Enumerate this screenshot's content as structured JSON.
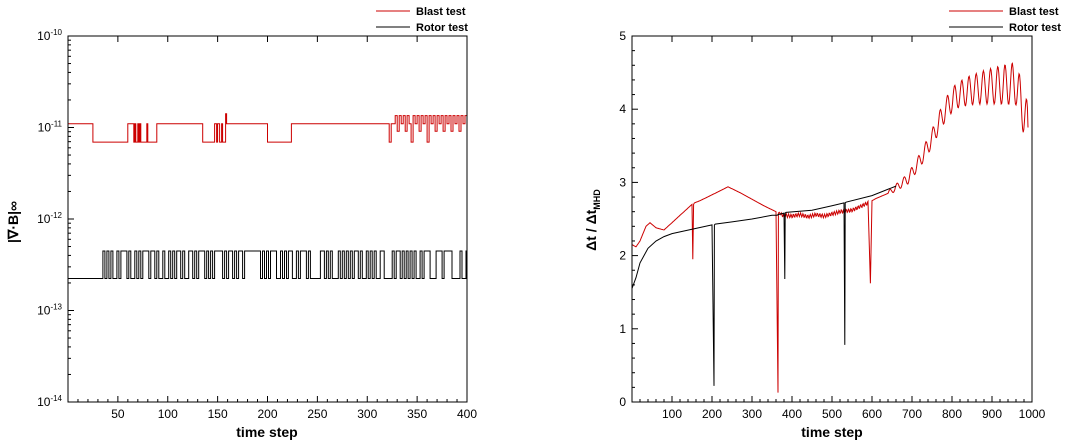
{
  "colors": {
    "blast": "#cc0000",
    "rotor": "#000000",
    "axis": "#000000"
  },
  "chart_data": [
    {
      "type": "line",
      "title": "",
      "xlabel": "time step",
      "ylabel": "|∇·B|∞",
      "yscale": "log",
      "xlim": [
        0,
        400
      ],
      "ylim_exp": [
        -14,
        -10
      ],
      "xticks": [
        50,
        100,
        150,
        200,
        250,
        300,
        350,
        400
      ],
      "yticks": [
        {
          "exp": -14,
          "label": "10",
          "sup": "-14"
        },
        {
          "exp": -13,
          "label": "10",
          "sup": "-13"
        },
        {
          "exp": -12,
          "label": "10",
          "sup": "-12"
        },
        {
          "exp": -11,
          "label": "10",
          "sup": "-11"
        },
        {
          "exp": -10,
          "label": "10",
          "sup": "-10"
        }
      ],
      "legend": {
        "position": "top-right"
      },
      "series": [
        {
          "name": "Blast test",
          "color": "#cc0000",
          "x": [
            0,
            25,
            25,
            60,
            60,
            66,
            66,
            67,
            67,
            68,
            68,
            70,
            70,
            71,
            71,
            72,
            72,
            73,
            73,
            79,
            79,
            80,
            80,
            89,
            89,
            135,
            135,
            147,
            147,
            149,
            149,
            150,
            150,
            152,
            152,
            154,
            154,
            155,
            155,
            158,
            158,
            159,
            159,
            160,
            160,
            200,
            200,
            224,
            224,
            322,
            322,
            324,
            324,
            328,
            328,
            330,
            330,
            332,
            332,
            334,
            334,
            336,
            336,
            338,
            338,
            340,
            340,
            342,
            342,
            344,
            344,
            346,
            346,
            348,
            348,
            350,
            350,
            352,
            352,
            354,
            354,
            356,
            356,
            358,
            358,
            360,
            360,
            362,
            362,
            364,
            364,
            366,
            366,
            368,
            368,
            370,
            370,
            372,
            372,
            374,
            374,
            376,
            376,
            378,
            378,
            380,
            380,
            382,
            382,
            384,
            384,
            386,
            386,
            388,
            388,
            390,
            390,
            392,
            392,
            394,
            394,
            396,
            396,
            398,
            398,
            400
          ],
          "log_y": [
            -10.96,
            -10.96,
            -11.16,
            -11.16,
            -10.96,
            -10.96,
            -11.16,
            -11.16,
            -10.96,
            -10.96,
            -11.16,
            -11.16,
            -10.96,
            -10.96,
            -11.16,
            -11.16,
            -10.96,
            -10.96,
            -11.16,
            -11.16,
            -10.96,
            -10.96,
            -11.16,
            -11.16,
            -10.96,
            -10.96,
            -11.16,
            -11.16,
            -10.96,
            -10.96,
            -11.16,
            -11.16,
            -10.96,
            -10.96,
            -11.16,
            -11.16,
            -10.96,
            -10.96,
            -11.16,
            -11.16,
            -10.85,
            -10.85,
            -10.96,
            -10.96,
            -10.96,
            -10.96,
            -11.16,
            -11.16,
            -10.96,
            -10.96,
            -11.16,
            -11.16,
            -10.96,
            -10.96,
            -10.87,
            -10.87,
            -11.04,
            -11.04,
            -10.87,
            -10.87,
            -10.96,
            -10.96,
            -10.87,
            -10.87,
            -11.04,
            -11.04,
            -10.87,
            -10.87,
            -10.96,
            -10.96,
            -11.16,
            -11.16,
            -10.87,
            -10.87,
            -10.96,
            -10.96,
            -10.87,
            -10.87,
            -11.04,
            -11.04,
            -10.87,
            -10.87,
            -10.96,
            -10.96,
            -10.87,
            -10.87,
            -11.16,
            -11.16,
            -10.87,
            -10.87,
            -10.96,
            -10.96,
            -10.87,
            -10.87,
            -11.04,
            -11.04,
            -10.87,
            -10.87,
            -10.96,
            -10.96,
            -10.87,
            -10.87,
            -11.04,
            -11.04,
            -10.87,
            -10.87,
            -10.96,
            -10.96,
            -10.87,
            -10.87,
            -11.04,
            -11.04,
            -10.87,
            -10.87,
            -10.96,
            -10.96,
            -10.87,
            -10.87,
            -11.04,
            -11.04,
            -10.87,
            -10.87,
            -10.96,
            -10.96,
            -10.87,
            -10.87,
            -10.96,
            -10.96
          ]
        },
        {
          "name": "Rotor test",
          "color": "#000000",
          "log_low": -12.65,
          "log_high": -12.35,
          "x_start": 0,
          "x_first_switch": 33,
          "x_end": 400,
          "switch_step": 2
        }
      ]
    },
    {
      "type": "line",
      "title": "",
      "xlabel": "time step",
      "ylabel": "Δt / ΔtMHD",
      "ylabel_main": "Δt / Δt",
      "ylabel_sub": "MHD",
      "xlim": [
        0,
        1000
      ],
      "ylim": [
        0,
        5
      ],
      "xticks": [
        100,
        200,
        300,
        400,
        500,
        600,
        700,
        800,
        900,
        1000
      ],
      "yticks": [
        0,
        1,
        2,
        3,
        4,
        5
      ],
      "legend": {
        "position": "top-right"
      },
      "series": [
        {
          "name": "Blast test",
          "color": "#cc0000",
          "x": [
            0,
            10,
            20,
            35,
            45,
            60,
            80,
            100,
            120,
            140,
            150,
            152,
            154,
            156,
            170,
            200,
            240,
            270,
            300,
            330,
            360,
            365,
            366,
            368,
            372,
            380,
            400,
            420,
            440,
            460,
            480,
            500,
            520,
            550,
            575,
            590,
            596,
            600,
            610,
            640,
            660,
            690,
            720,
            750,
            770,
            790,
            810,
            840,
            880,
            920,
            960,
            990
          ],
          "y": [
            2.15,
            2.12,
            2.2,
            2.4,
            2.45,
            2.38,
            2.35,
            2.45,
            2.55,
            2.65,
            2.7,
            1.95,
            2.7,
            2.72,
            2.75,
            2.83,
            2.94,
            2.86,
            2.77,
            2.68,
            2.6,
            0.15,
            2.58,
            2.57,
            2.56,
            2.55,
            2.54,
            2.56,
            2.53,
            2.56,
            2.54,
            2.57,
            2.6,
            2.62,
            2.68,
            2.72,
            1.6,
            2.75,
            2.78,
            2.85,
            2.93,
            3.05,
            3.3,
            3.6,
            3.85,
            4.05,
            4.18,
            4.25,
            4.3,
            4.33,
            4.35,
            3.75
          ],
          "osc": [
            {
              "x0": 360,
              "x1": 600,
              "amp": 0.025,
              "period": 6
            },
            {
              "x0": 640,
              "x1": 990,
              "amp_start": 0.03,
              "amp_end": 0.32,
              "period": 18
            }
          ]
        },
        {
          "name": "Rotor test",
          "color": "#000000",
          "x": [
            0,
            10,
            20,
            40,
            60,
            80,
            100,
            150,
            200,
            205,
            206,
            208,
            250,
            300,
            350,
            360,
            362,
            363,
            365,
            380,
            382,
            383,
            385,
            450,
            500,
            530,
            532,
            533,
            535,
            600,
            660
          ],
          "y": [
            1.55,
            1.7,
            1.9,
            2.1,
            2.2,
            2.26,
            2.3,
            2.36,
            2.42,
            0.22,
            2.42,
            2.43,
            2.46,
            2.5,
            2.55,
            2.55,
            2.55,
            2.55,
            2.56,
            2.58,
            1.68,
            2.58,
            2.59,
            2.62,
            2.68,
            2.72,
            0.78,
            2.72,
            2.73,
            2.82,
            2.95
          ]
        }
      ]
    }
  ]
}
